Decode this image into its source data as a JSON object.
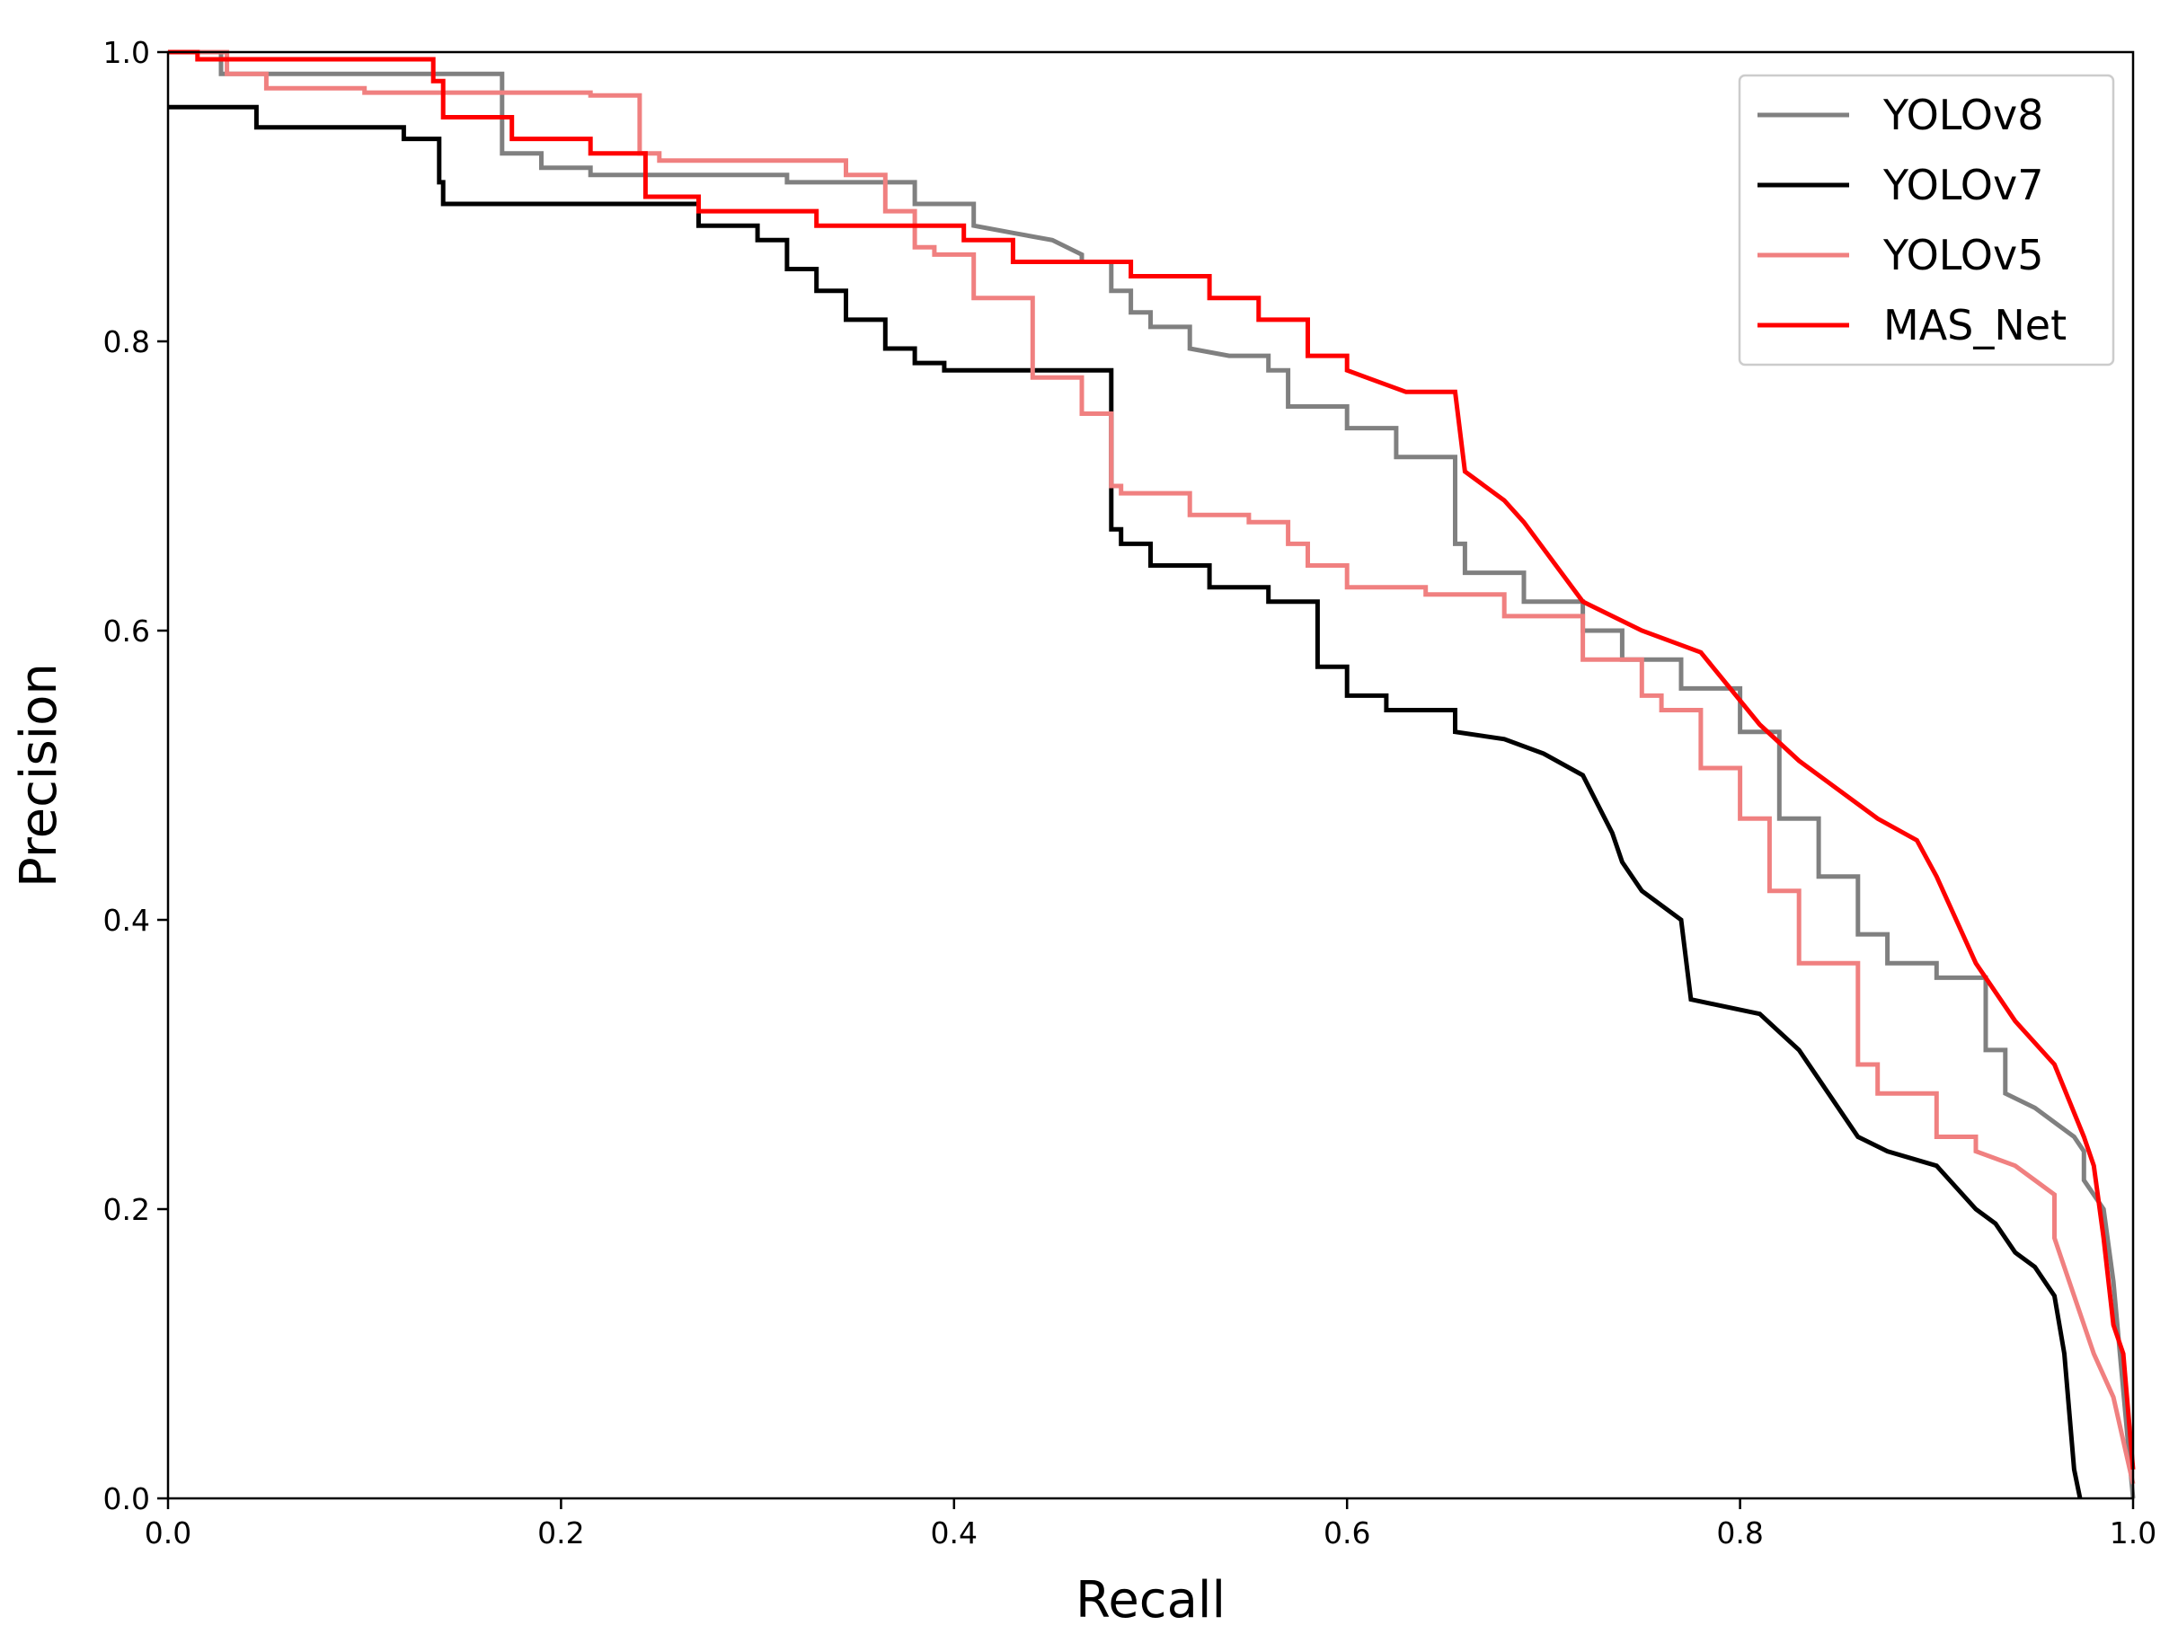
{
  "chart_data": {
    "type": "line",
    "title": "",
    "xlabel": "Recall",
    "ylabel": "Precision",
    "xlim": [
      0.0,
      1.0
    ],
    "ylim": [
      0.0,
      1.0
    ],
    "grid": false,
    "legend_position": "top-right",
    "x_ticks": [
      "0.0",
      "0.2",
      "0.4",
      "0.6",
      "0.8",
      "1.0"
    ],
    "y_ticks": [
      "0.0",
      "0.2",
      "0.4",
      "0.6",
      "0.8",
      "1.0"
    ],
    "series": [
      {
        "name": "YOLOv8",
        "color": "#808080",
        "x": [
          0.0,
          0.027,
          0.027,
          0.17,
          0.17,
          0.19,
          0.19,
          0.215,
          0.215,
          0.315,
          0.315,
          0.38,
          0.38,
          0.41,
          0.41,
          0.43,
          0.45,
          0.465,
          0.465,
          0.48,
          0.48,
          0.49,
          0.49,
          0.5,
          0.5,
          0.52,
          0.52,
          0.54,
          0.56,
          0.56,
          0.57,
          0.57,
          0.6,
          0.6,
          0.625,
          0.625,
          0.655,
          0.655,
          0.66,
          0.66,
          0.69,
          0.69,
          0.72,
          0.72,
          0.74,
          0.74,
          0.77,
          0.77,
          0.8,
          0.8,
          0.82,
          0.82,
          0.84,
          0.84,
          0.86,
          0.86,
          0.875,
          0.875,
          0.9,
          0.9,
          0.925,
          0.925,
          0.935,
          0.935,
          0.95,
          0.96,
          0.97,
          0.975,
          0.975,
          0.985,
          0.99,
          1.0
        ],
        "y": [
          1.0,
          1.0,
          0.985,
          0.985,
          0.93,
          0.93,
          0.92,
          0.92,
          0.915,
          0.915,
          0.91,
          0.91,
          0.895,
          0.895,
          0.88,
          0.875,
          0.87,
          0.86,
          0.855,
          0.855,
          0.835,
          0.835,
          0.82,
          0.82,
          0.81,
          0.81,
          0.795,
          0.79,
          0.79,
          0.78,
          0.78,
          0.755,
          0.755,
          0.74,
          0.74,
          0.72,
          0.72,
          0.66,
          0.66,
          0.64,
          0.64,
          0.62,
          0.62,
          0.6,
          0.6,
          0.58,
          0.58,
          0.56,
          0.56,
          0.53,
          0.53,
          0.47,
          0.47,
          0.43,
          0.43,
          0.39,
          0.39,
          0.37,
          0.37,
          0.36,
          0.36,
          0.31,
          0.31,
          0.28,
          0.27,
          0.26,
          0.25,
          0.24,
          0.22,
          0.2,
          0.15,
          0.0
        ]
      },
      {
        "name": "YOLOv7",
        "color": "#000000",
        "x": [
          0.0,
          0.045,
          0.045,
          0.12,
          0.12,
          0.138,
          0.138,
          0.14,
          0.14,
          0.27,
          0.27,
          0.3,
          0.3,
          0.315,
          0.315,
          0.33,
          0.33,
          0.345,
          0.345,
          0.365,
          0.365,
          0.38,
          0.38,
          0.395,
          0.395,
          0.42,
          0.42,
          0.48,
          0.48,
          0.485,
          0.485,
          0.5,
          0.5,
          0.53,
          0.53,
          0.56,
          0.56,
          0.585,
          0.585,
          0.6,
          0.6,
          0.62,
          0.62,
          0.655,
          0.655,
          0.68,
          0.7,
          0.7,
          0.72,
          0.72,
          0.735,
          0.735,
          0.74,
          0.74,
          0.75,
          0.75,
          0.77,
          0.77,
          0.775,
          0.775,
          0.81,
          0.81,
          0.83,
          0.83,
          0.845,
          0.845,
          0.86,
          0.86,
          0.875,
          0.9,
          0.92,
          0.93,
          0.94,
          0.95,
          0.96,
          0.965,
          0.97,
          0.973
        ],
        "y": [
          0.962,
          0.962,
          0.948,
          0.948,
          0.94,
          0.94,
          0.91,
          0.91,
          0.895,
          0.895,
          0.88,
          0.88,
          0.87,
          0.87,
          0.85,
          0.85,
          0.835,
          0.835,
          0.815,
          0.815,
          0.795,
          0.795,
          0.785,
          0.785,
          0.78,
          0.78,
          0.78,
          0.78,
          0.67,
          0.67,
          0.66,
          0.66,
          0.645,
          0.645,
          0.63,
          0.63,
          0.62,
          0.62,
          0.575,
          0.575,
          0.555,
          0.555,
          0.545,
          0.545,
          0.53,
          0.525,
          0.515,
          0.515,
          0.5,
          0.5,
          0.46,
          0.46,
          0.44,
          0.44,
          0.42,
          0.42,
          0.4,
          0.4,
          0.345,
          0.345,
          0.335,
          0.335,
          0.31,
          0.31,
          0.28,
          0.28,
          0.25,
          0.25,
          0.24,
          0.23,
          0.2,
          0.19,
          0.17,
          0.16,
          0.14,
          0.1,
          0.02,
          0.0
        ]
      },
      {
        "name": "YOLOv5",
        "color": "#f08080",
        "x": [
          0.0,
          0.03,
          0.03,
          0.05,
          0.05,
          0.1,
          0.1,
          0.215,
          0.215,
          0.24,
          0.24,
          0.25,
          0.25,
          0.345,
          0.345,
          0.365,
          0.365,
          0.38,
          0.38,
          0.39,
          0.39,
          0.41,
          0.41,
          0.44,
          0.44,
          0.465,
          0.465,
          0.48,
          0.48,
          0.485,
          0.485,
          0.52,
          0.52,
          0.55,
          0.55,
          0.57,
          0.57,
          0.58,
          0.58,
          0.6,
          0.6,
          0.64,
          0.64,
          0.68,
          0.68,
          0.72,
          0.72,
          0.75,
          0.75,
          0.76,
          0.76,
          0.78,
          0.78,
          0.8,
          0.8,
          0.815,
          0.815,
          0.83,
          0.83,
          0.86,
          0.86,
          0.87,
          0.87,
          0.9,
          0.9,
          0.92,
          0.92,
          0.94,
          0.95,
          0.96,
          0.96,
          0.97,
          0.98,
          0.99,
          1.0
        ],
        "y": [
          1.0,
          1.0,
          0.985,
          0.985,
          0.975,
          0.975,
          0.972,
          0.972,
          0.97,
          0.97,
          0.93,
          0.93,
          0.925,
          0.925,
          0.915,
          0.915,
          0.89,
          0.89,
          0.865,
          0.865,
          0.86,
          0.86,
          0.83,
          0.83,
          0.775,
          0.775,
          0.75,
          0.75,
          0.7,
          0.7,
          0.695,
          0.695,
          0.68,
          0.68,
          0.675,
          0.675,
          0.66,
          0.66,
          0.645,
          0.645,
          0.63,
          0.63,
          0.625,
          0.625,
          0.61,
          0.61,
          0.58,
          0.58,
          0.555,
          0.555,
          0.545,
          0.545,
          0.505,
          0.505,
          0.47,
          0.47,
          0.42,
          0.42,
          0.37,
          0.37,
          0.3,
          0.3,
          0.28,
          0.28,
          0.25,
          0.25,
          0.24,
          0.23,
          0.22,
          0.21,
          0.18,
          0.14,
          0.1,
          0.07,
          0.01
        ]
      },
      {
        "name": "MAS_Net",
        "color": "#ff0000",
        "x": [
          0.0,
          0.015,
          0.015,
          0.135,
          0.135,
          0.14,
          0.14,
          0.175,
          0.175,
          0.215,
          0.215,
          0.243,
          0.243,
          0.27,
          0.27,
          0.33,
          0.33,
          0.405,
          0.405,
          0.43,
          0.43,
          0.49,
          0.49,
          0.53,
          0.53,
          0.555,
          0.555,
          0.58,
          0.58,
          0.6,
          0.6,
          0.61,
          0.63,
          0.63,
          0.655,
          0.655,
          0.66,
          0.66,
          0.68,
          0.68,
          0.69,
          0.69,
          0.72,
          0.72,
          0.75,
          0.75,
          0.78,
          0.78,
          0.795,
          0.795,
          0.81,
          0.81,
          0.83,
          0.83,
          0.85,
          0.85,
          0.87,
          0.87,
          0.89,
          0.89,
          0.9,
          0.9,
          0.92,
          0.92,
          0.94,
          0.94,
          0.96,
          0.96,
          0.975,
          0.98,
          0.985,
          0.99,
          0.995,
          1.0
        ],
        "y": [
          1.0,
          1.0,
          0.995,
          0.995,
          0.98,
          0.98,
          0.955,
          0.955,
          0.94,
          0.94,
          0.93,
          0.93,
          0.9,
          0.9,
          0.89,
          0.89,
          0.88,
          0.88,
          0.87,
          0.87,
          0.855,
          0.855,
          0.845,
          0.845,
          0.83,
          0.83,
          0.815,
          0.815,
          0.79,
          0.79,
          0.78,
          0.775,
          0.765,
          0.765,
          0.765,
          0.765,
          0.71,
          0.71,
          0.69,
          0.69,
          0.675,
          0.675,
          0.62,
          0.62,
          0.6,
          0.6,
          0.585,
          0.585,
          0.56,
          0.56,
          0.535,
          0.535,
          0.51,
          0.51,
          0.49,
          0.49,
          0.47,
          0.47,
          0.455,
          0.455,
          0.43,
          0.43,
          0.37,
          0.37,
          0.33,
          0.33,
          0.3,
          0.3,
          0.25,
          0.23,
          0.18,
          0.12,
          0.1,
          0.02
        ]
      }
    ]
  }
}
